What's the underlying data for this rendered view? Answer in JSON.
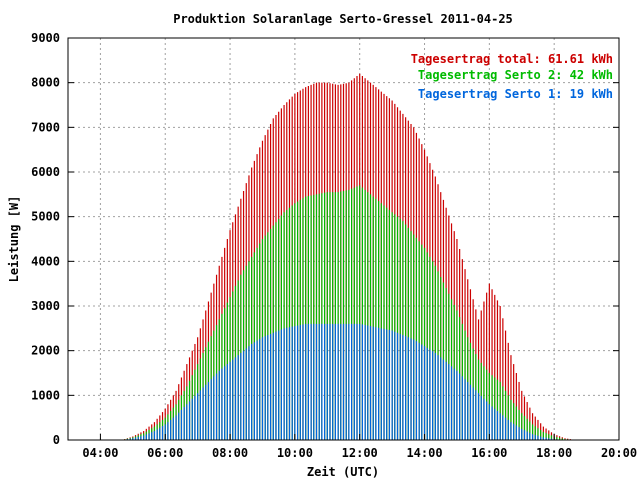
{
  "chart_data": {
    "type": "bar",
    "title": "Produktion Solaranlage Serto-Gressel 2011-04-25",
    "xlabel": "Zeit (UTC)",
    "ylabel": "Leistung [W]",
    "xlim": [
      "03:00",
      "20:00"
    ],
    "ylim": [
      0,
      9000
    ],
    "x_ticks": [
      "04:00",
      "06:00",
      "08:00",
      "10:00",
      "12:00",
      "14:00",
      "16:00",
      "18:00",
      "20:00"
    ],
    "y_ticks": [
      "0",
      "1000",
      "2000",
      "3000",
      "4000",
      "5000",
      "6000",
      "7000",
      "8000",
      "9000"
    ],
    "grid": true,
    "legend_position": "top-right",
    "bar_spacing_minutes": 5,
    "series": [
      {
        "name": "Tagesertrag total: 61.61 kWh",
        "color": "#cc0000",
        "stacked_total": true,
        "x": [
          "04:40",
          "05:00",
          "05:20",
          "05:40",
          "06:00",
          "06:20",
          "06:40",
          "07:00",
          "07:20",
          "07:40",
          "08:00",
          "08:20",
          "08:40",
          "09:00",
          "09:20",
          "09:40",
          "10:00",
          "10:20",
          "10:40",
          "11:00",
          "11:20",
          "11:40",
          "12:00",
          "12:20",
          "12:40",
          "13:00",
          "13:20",
          "13:40",
          "14:00",
          "14:20",
          "14:40",
          "15:00",
          "15:20",
          "15:40",
          "16:00",
          "16:20",
          "16:40",
          "17:00",
          "17:20",
          "17:40",
          "18:00",
          "18:20",
          "18:40"
        ],
        "values": [
          0,
          80,
          200,
          400,
          700,
          1100,
          1700,
          2300,
          3100,
          3900,
          4700,
          5400,
          6100,
          6700,
          7200,
          7500,
          7750,
          7900,
          8000,
          8000,
          7950,
          8000,
          8200,
          8000,
          7800,
          7600,
          7300,
          7000,
          6500,
          5900,
          5200,
          4500,
          3600,
          2700,
          3500,
          3000,
          1900,
          1100,
          600,
          300,
          130,
          40,
          0
        ]
      },
      {
        "name": "Tagesertrag Serto 2: 42 kWh",
        "color": "#00bb00",
        "stacked_total": false,
        "x": [
          "04:40",
          "05:00",
          "05:20",
          "05:40",
          "06:00",
          "06:20",
          "06:40",
          "07:00",
          "07:20",
          "07:40",
          "08:00",
          "08:20",
          "08:40",
          "09:00",
          "09:20",
          "09:40",
          "10:00",
          "10:20",
          "10:40",
          "11:00",
          "11:20",
          "11:40",
          "12:00",
          "12:20",
          "12:40",
          "13:00",
          "13:20",
          "13:40",
          "14:00",
          "14:20",
          "14:40",
          "15:00",
          "15:20",
          "15:40",
          "16:00",
          "16:20",
          "16:40",
          "17:00",
          "17:20",
          "17:40",
          "18:00",
          "18:20",
          "18:40"
        ],
        "values": [
          0,
          60,
          150,
          300,
          500,
          800,
          1200,
          1700,
          2200,
          2700,
          3200,
          3700,
          4100,
          4500,
          4800,
          5100,
          5300,
          5450,
          5500,
          5550,
          5550,
          5600,
          5700,
          5500,
          5300,
          5100,
          4900,
          4600,
          4300,
          3900,
          3400,
          2900,
          2300,
          1800,
          1500,
          1300,
          900,
          600,
          350,
          180,
          80,
          20,
          0
        ]
      },
      {
        "name": "Tagesertrag Serto 1: 19 kWh",
        "color": "#0066dd",
        "stacked_total": false,
        "x": [
          "04:40",
          "05:00",
          "05:20",
          "05:40",
          "06:00",
          "06:20",
          "06:40",
          "07:00",
          "07:20",
          "07:40",
          "08:00",
          "08:20",
          "08:40",
          "09:00",
          "09:20",
          "09:40",
          "10:00",
          "10:20",
          "10:40",
          "11:00",
          "11:20",
          "11:40",
          "12:00",
          "12:20",
          "12:40",
          "13:00",
          "13:20",
          "13:40",
          "14:00",
          "14:20",
          "14:40",
          "15:00",
          "15:20",
          "15:40",
          "16:00",
          "16:20",
          "16:40",
          "17:00",
          "17:20",
          "17:40",
          "18:00",
          "18:20",
          "18:40"
        ],
        "values": [
          0,
          40,
          100,
          200,
          350,
          550,
          800,
          1050,
          1300,
          1550,
          1750,
          1950,
          2150,
          2300,
          2400,
          2500,
          2550,
          2600,
          2600,
          2600,
          2600,
          2600,
          2600,
          2550,
          2500,
          2450,
          2350,
          2250,
          2100,
          1950,
          1750,
          1550,
          1300,
          1050,
          800,
          600,
          400,
          250,
          130,
          60,
          20,
          0,
          0
        ]
      }
    ]
  }
}
